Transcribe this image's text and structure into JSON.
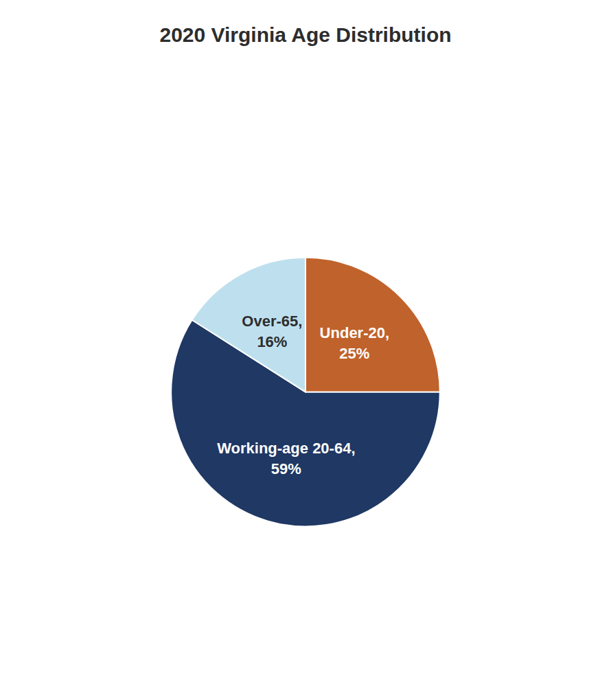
{
  "chart_data": {
    "type": "pie",
    "title": "2020 Virginia Age Distribution",
    "values": [
      25,
      59,
      16
    ],
    "value_labels": [
      "Under-20,\n25%",
      "Working-age 20-64,\n59%",
      "Over-65,\n16%"
    ],
    "colors": [
      "#C0622B",
      "#1F3864",
      "#BEE0EE"
    ]
  }
}
